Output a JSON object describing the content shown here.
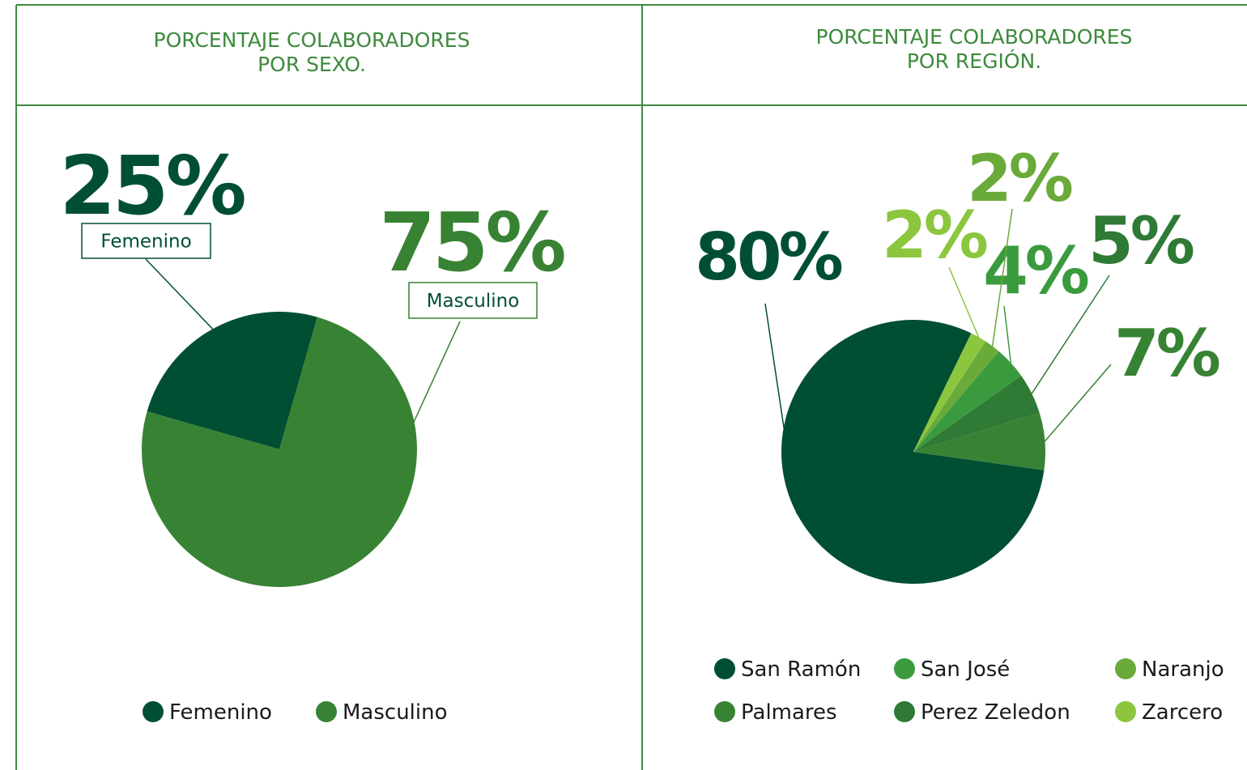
{
  "chart_data": [
    {
      "type": "pie",
      "title": "PORCENTAJE COLABORADORES\nPOR SEXO.",
      "categories": [
        "Femenino",
        "Masculino"
      ],
      "values": [
        25,
        75
      ],
      "value_labels": [
        "25%",
        "75%"
      ],
      "colors": [
        "#004f33",
        "#388234"
      ],
      "legend": "bottom"
    },
    {
      "type": "pie",
      "title": "PORCENTAJE COLABORADORES\nPOR REGIÓN.",
      "categories": [
        "San Ramón",
        "Palmares",
        "Perez Zeledon",
        "San José",
        "Naranjo",
        "Zarcero"
      ],
      "values": [
        80,
        7,
        5,
        4,
        2,
        2
      ],
      "value_labels": [
        "80%",
        "7%",
        "5%",
        "4%",
        "2%",
        "2%"
      ],
      "colors": [
        "#004f33",
        "#388234",
        "#2f7a35",
        "#3a9b3e",
        "#6aaa3a",
        "#8cc63f"
      ],
      "legend": "bottom"
    }
  ]
}
